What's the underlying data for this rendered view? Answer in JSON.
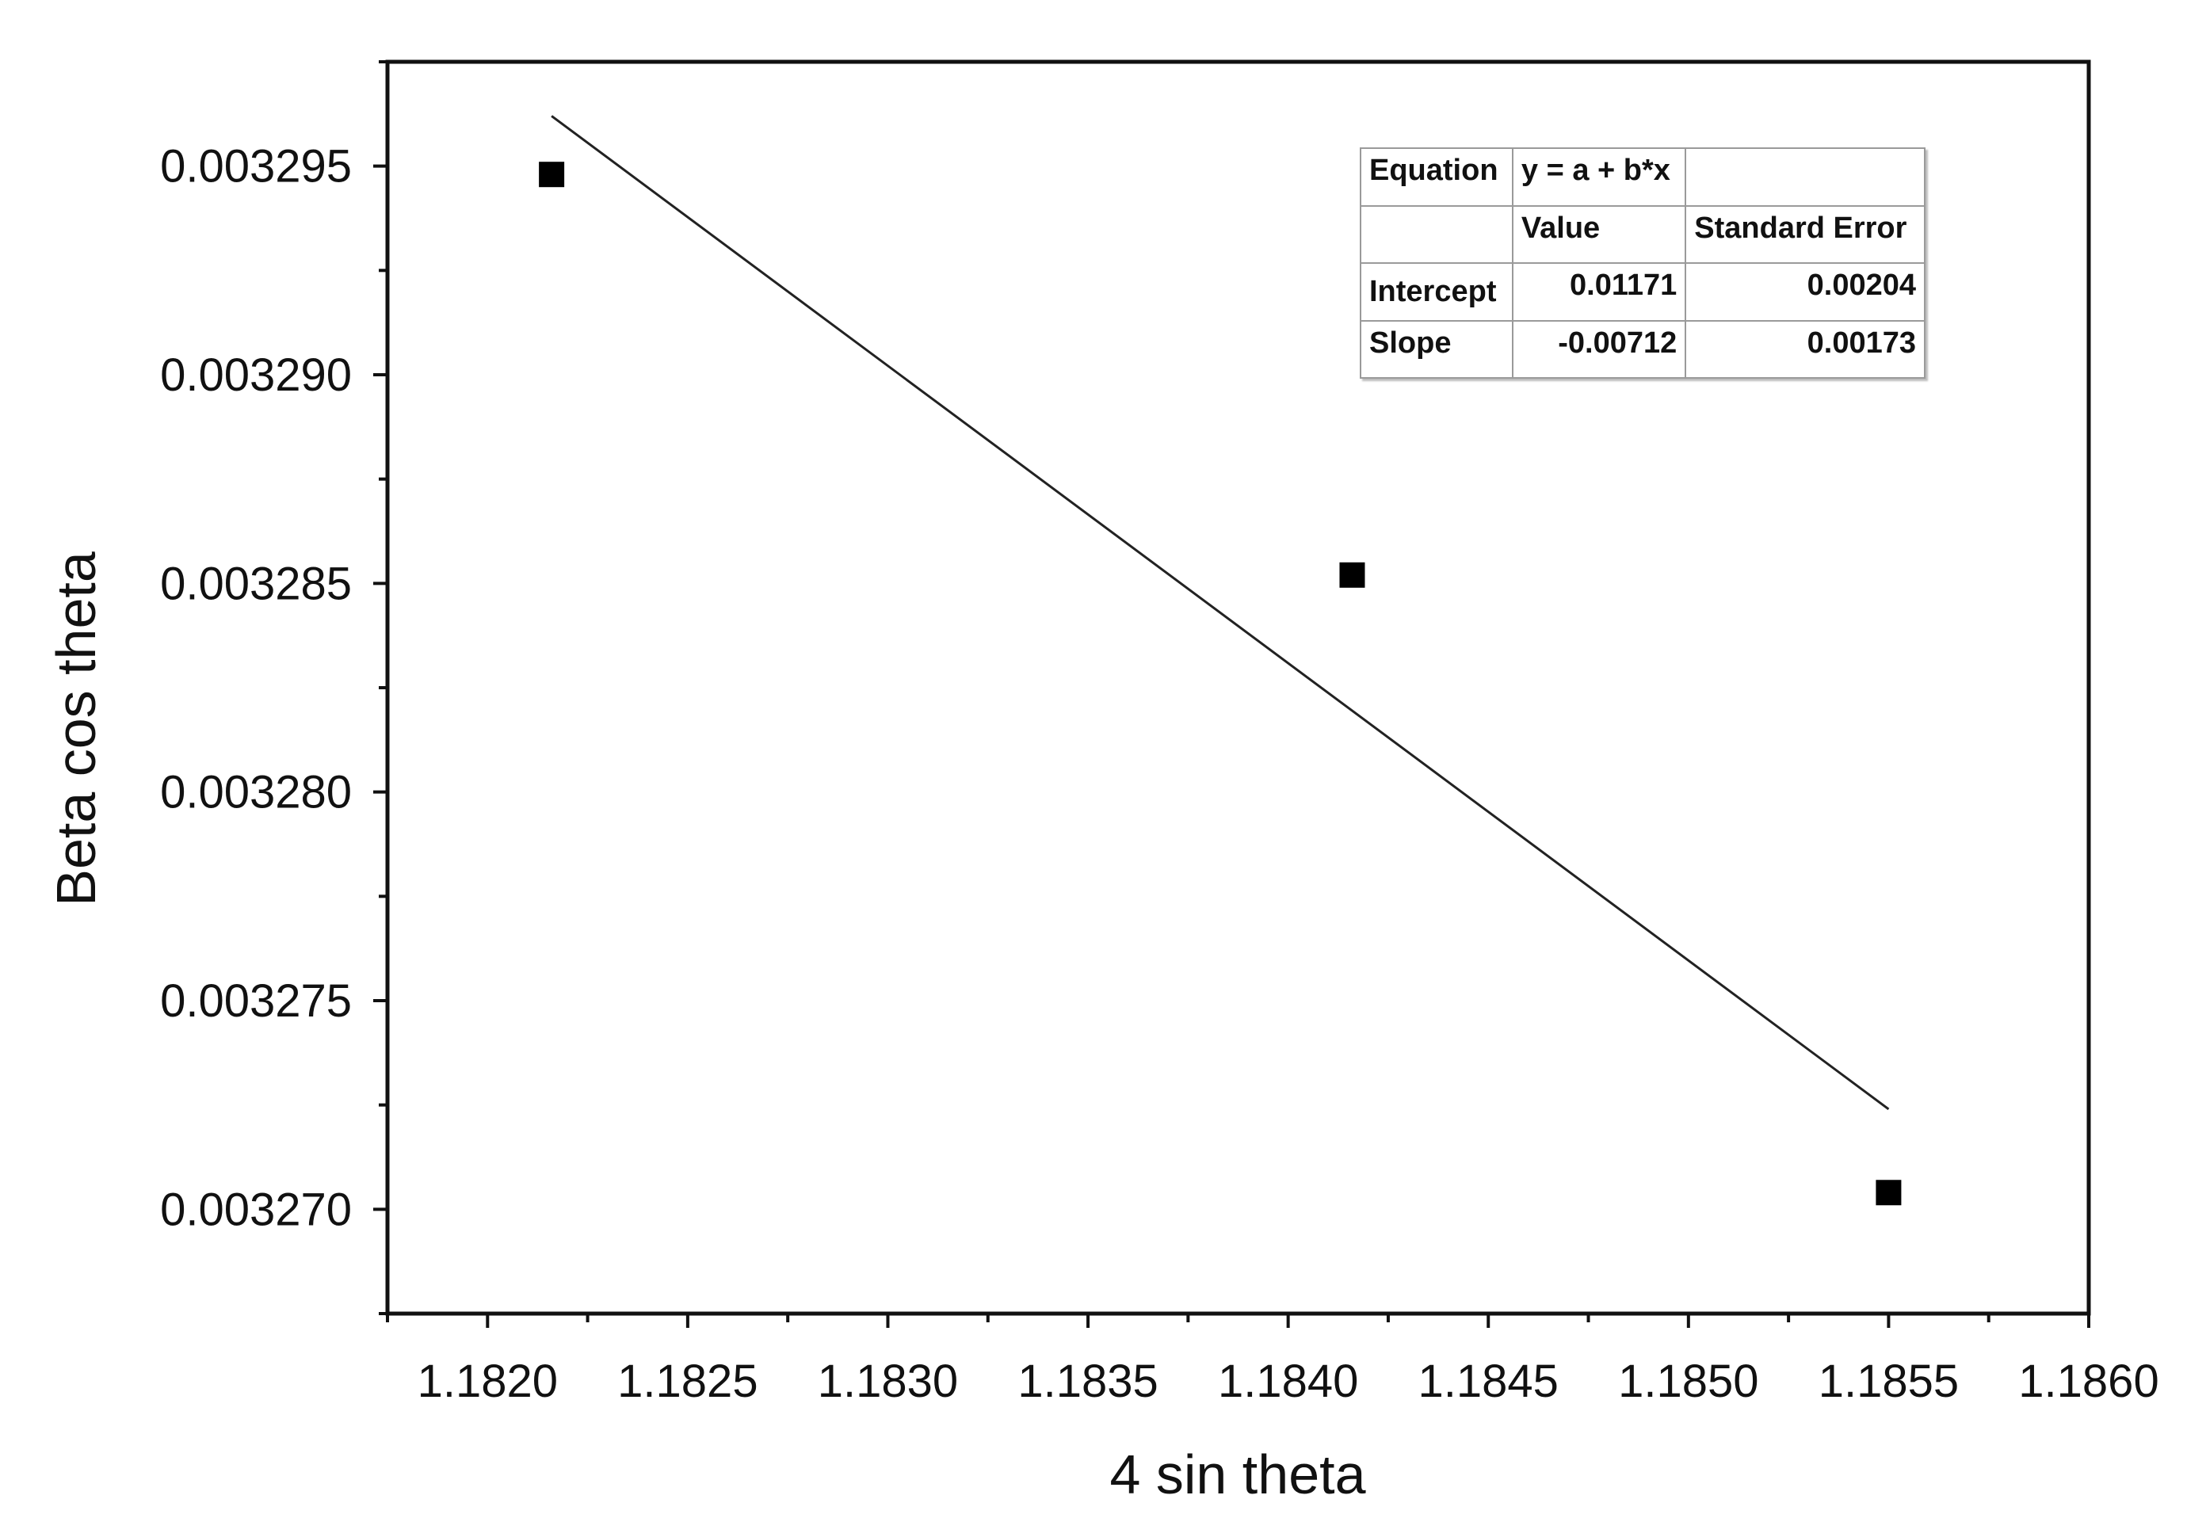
{
  "chart_data": {
    "type": "scatter",
    "title": "",
    "xlabel": "4 sin theta",
    "ylabel": "Beta cos theta",
    "xlim": [
      1.18175,
      1.186
    ],
    "ylim": [
      0.0032675,
      0.0032975
    ],
    "x_ticks": [
      "1.1820",
      "1.1825",
      "1.1830",
      "1.1835",
      "1.1840",
      "1.1845",
      "1.1850",
      "1.1855",
      "1.1860"
    ],
    "x_tick_values": [
      1.182,
      1.1825,
      1.183,
      1.1835,
      1.184,
      1.1845,
      1.185,
      1.1855,
      1.186
    ],
    "y_ticks": [
      "0.003270",
      "0.003275",
      "0.003280",
      "0.003285",
      "0.003290",
      "0.003295"
    ],
    "y_tick_values": [
      0.00327,
      0.003275,
      0.00328,
      0.003285,
      0.00329,
      0.003295
    ],
    "series": [
      {
        "marker": "square",
        "color": "#000000",
        "x": [
          1.18216,
          1.18416,
          1.1855
        ],
        "y": [
          0.0032948,
          0.0032852,
          0.0032704
        ]
      }
    ],
    "fit_line": {
      "color": "#222222",
      "x": [
        1.18216,
        1.1855
      ],
      "y": [
        0.0032962,
        0.0032724
      ]
    },
    "fit_table": {
      "rows": [
        [
          "Equation",
          "y = a + b*x",
          ""
        ],
        [
          "",
          "Value",
          "Standard Error"
        ],
        [
          "Intercept",
          "0.01171",
          "0.00204"
        ],
        [
          "Slope",
          "-0.00712",
          "0.00173"
        ]
      ]
    },
    "grid": false,
    "legend": "none"
  }
}
